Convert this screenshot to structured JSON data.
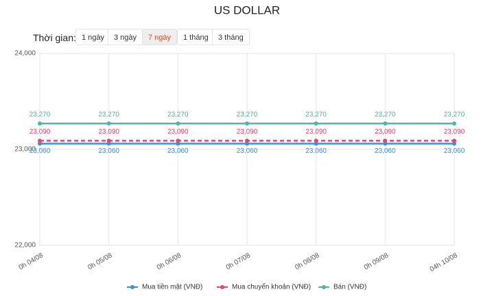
{
  "time_filter": {
    "label": "Thời gian:",
    "options": [
      "1 ngày",
      "3 ngày",
      "7 ngày",
      "1 tháng",
      "3 tháng"
    ],
    "active": 2
  },
  "chart_data": {
    "type": "line",
    "title": "US DOLLAR",
    "categories": [
      "0h 04/08",
      "0h 05/08",
      "0h 06/08",
      "0h 07/08",
      "0h 08/08",
      "0h 09/08",
      "04h 10/08"
    ],
    "series": [
      {
        "name": "Mua tiền mặt (VNĐ)",
        "color": "#3d8fe3",
        "dashed": false,
        "label_position": "below",
        "values": [
          23060,
          23060,
          23060,
          23060,
          23060,
          23060,
          23060
        ],
        "value_labels": [
          "23,060",
          "23,060",
          "23,060",
          "23,060",
          "23,060",
          "23,060",
          "23,060"
        ]
      },
      {
        "name": "Mua chuyển khoản (VNĐ)",
        "color": "#e8466c",
        "dashed": true,
        "label_position": "above",
        "values": [
          23090,
          23090,
          23090,
          23090,
          23090,
          23090,
          23090
        ],
        "value_labels": [
          "23,090",
          "23,090",
          "23,090",
          "23,090",
          "23,090",
          "23,090",
          "23,090"
        ]
      },
      {
        "name": "Bán (VNĐ)",
        "color": "#4db6ac",
        "dashed": false,
        "label_position": "above",
        "values": [
          23270,
          23270,
          23270,
          23270,
          23270,
          23270,
          23270
        ],
        "value_labels": [
          "23,270",
          "23,270",
          "23,270",
          "23,270",
          "23,270",
          "23,270",
          "23,270"
        ]
      }
    ],
    "ylim": [
      22000,
      24000
    ],
    "yticks": [
      {
        "value": 22000,
        "label": "22,000"
      },
      {
        "value": 23000,
        "label": "23,000"
      },
      {
        "value": 24000,
        "label": "24,000"
      }
    ],
    "grid": true
  }
}
